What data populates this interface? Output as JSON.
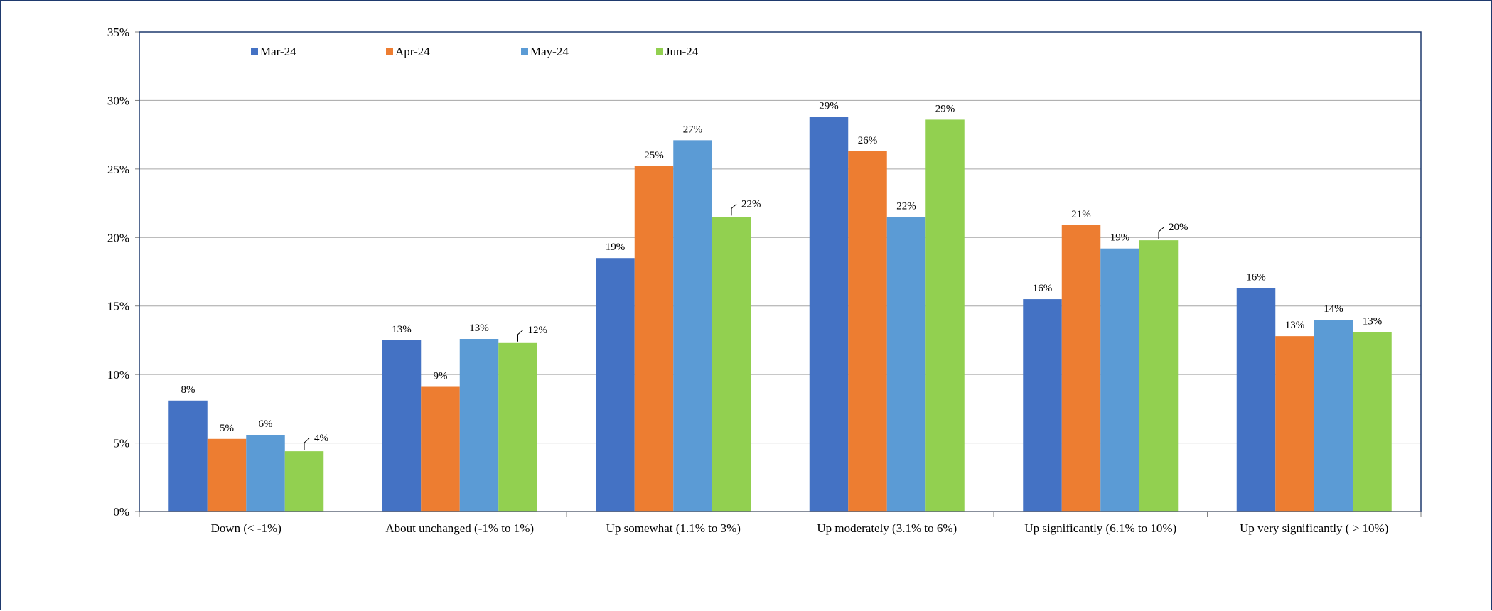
{
  "chart_data": {
    "type": "bar",
    "title": "",
    "xlabel": "",
    "ylabel": "",
    "ylim": [
      0,
      0.35
    ],
    "yticks": [
      0,
      0.05,
      0.1,
      0.15,
      0.2,
      0.25,
      0.3,
      0.35
    ],
    "ytick_labels": [
      "0%",
      "5%",
      "10%",
      "15%",
      "20%",
      "25%",
      "30%",
      "35%"
    ],
    "grid": "horizontal",
    "legend_position": "top-left, inside plot",
    "categories": [
      "Down (< -1%)",
      "About unchanged (-1% to 1%)",
      "Up somewhat (1.1% to 3%)",
      "Up moderately (3.1% to 6%)",
      "Up significantly (6.1% to 10%)",
      "Up very significantly ( > 10%)"
    ],
    "series": [
      {
        "name": "Mar-24",
        "color": "#4472C4",
        "values": [
          0.081,
          0.125,
          0.185,
          0.288,
          0.155,
          0.163
        ],
        "labels": [
          "8%",
          "13%",
          "19%",
          "29%",
          "16%",
          "16%"
        ]
      },
      {
        "name": "Apr-24",
        "color": "#ED7D31",
        "values": [
          0.053,
          0.091,
          0.252,
          0.263,
          0.209,
          0.128
        ],
        "labels": [
          "5%",
          "9%",
          "25%",
          "26%",
          "21%",
          "13%"
        ]
      },
      {
        "name": "May-24",
        "color": "#5B9BD5",
        "values": [
          0.056,
          0.126,
          0.271,
          0.215,
          0.192,
          0.14
        ],
        "labels": [
          "6%",
          "13%",
          "27%",
          "22%",
          "19%",
          "14%"
        ]
      },
      {
        "name": "Jun-24",
        "color": "#92D050",
        "values": [
          0.044,
          0.123,
          0.215,
          0.286,
          0.198,
          0.131
        ],
        "labels": [
          "4%",
          "12%",
          "22%",
          "29%",
          "20%",
          "13%"
        ]
      }
    ],
    "colors": {
      "axis_frame": "#1F3A6E",
      "gridline": "#A6A6A6"
    }
  }
}
